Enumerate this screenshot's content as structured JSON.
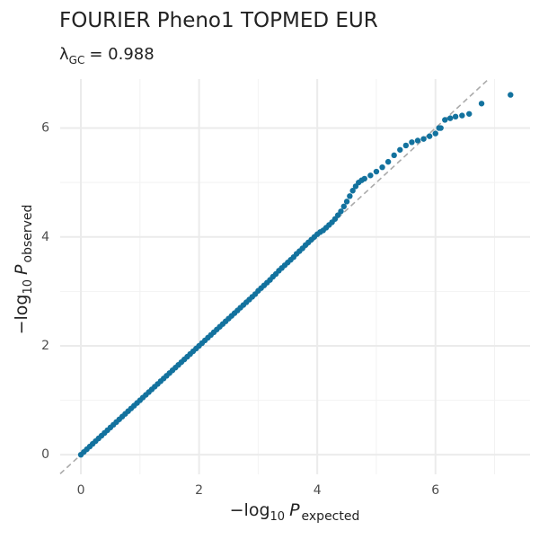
{
  "chart_data": {
    "type": "scatter",
    "title": "FOURIER Pheno1 TOPMED EUR",
    "subtitle": {
      "symbol": "λ",
      "subscript": "GC",
      "text": "= 0.988"
    },
    "x_label": {
      "prefix": "−log",
      "subscript": "10",
      "symbol": "P",
      "symbol_subscript": "expected"
    },
    "y_label": {
      "prefix": "−log",
      "subscript": "10",
      "symbol": "P",
      "symbol_subscript": "observed"
    },
    "xlim": [
      -0.35,
      7.6
    ],
    "ylim": [
      -0.36,
      6.9
    ],
    "xticks": [
      0,
      2,
      4,
      6
    ],
    "yticks": [
      0,
      2,
      4,
      6
    ],
    "minor_xticks": [
      1,
      3,
      5,
      7
    ],
    "minor_yticks": [
      1,
      3,
      5
    ],
    "grid": true,
    "reference_line": "y=x",
    "color": "#13729e",
    "x": [
      0,
      0.05,
      0.1,
      0.15,
      0.2,
      0.25,
      0.3,
      0.35,
      0.4,
      0.45,
      0.5,
      0.55,
      0.6,
      0.65,
      0.7,
      0.75,
      0.8,
      0.85,
      0.9,
      0.95,
      1,
      1.05,
      1.1,
      1.15,
      1.2,
      1.25,
      1.3,
      1.35,
      1.4,
      1.45,
      1.5,
      1.55,
      1.6,
      1.65,
      1.7,
      1.75,
      1.8,
      1.85,
      1.9,
      1.95,
      2,
      2.05,
      2.1,
      2.15,
      2.2,
      2.25,
      2.3,
      2.35,
      2.4,
      2.45,
      2.5,
      2.55,
      2.6,
      2.65,
      2.7,
      2.75,
      2.8,
      2.85,
      2.9,
      2.95,
      3,
      3.05,
      3.1,
      3.15,
      3.2,
      3.25,
      3.3,
      3.35,
      3.4,
      3.45,
      3.5,
      3.55,
      3.6,
      3.65,
      3.7,
      3.75,
      3.8,
      3.85,
      3.9,
      3.95,
      4,
      4.05,
      4.1,
      4.15,
      4.2,
      4.25,
      4.3,
      4.35,
      4.4,
      4.45,
      4.5,
      4.55,
      4.6,
      4.65,
      4.7,
      4.75,
      4.8,
      4.9,
      5,
      5.1,
      5.2,
      5.3,
      5.4,
      5.5,
      5.6,
      5.7,
      5.8,
      5.9,
      6,
      6.06,
      6.09,
      6.16,
      6.25,
      6.34,
      6.45,
      6.57,
      6.78,
      7.27
    ],
    "y": [
      0,
      0.05,
      0.1,
      0.15,
      0.2,
      0.25,
      0.3,
      0.35,
      0.4,
      0.45,
      0.5,
      0.55,
      0.6,
      0.65,
      0.7,
      0.75,
      0.8,
      0.85,
      0.9,
      0.95,
      1,
      1.05,
      1.1,
      1.15,
      1.2,
      1.25,
      1.3,
      1.35,
      1.4,
      1.45,
      1.5,
      1.55,
      1.6,
      1.65,
      1.7,
      1.75,
      1.8,
      1.85,
      1.9,
      1.95,
      2,
      2.05,
      2.1,
      2.15,
      2.2,
      2.25,
      2.3,
      2.35,
      2.4,
      2.45,
      2.5,
      2.55,
      2.6,
      2.65,
      2.7,
      2.75,
      2.8,
      2.85,
      2.9,
      2.95,
      3.01,
      3.06,
      3.11,
      3.16,
      3.21,
      3.27,
      3.32,
      3.38,
      3.43,
      3.48,
      3.53,
      3.58,
      3.63,
      3.69,
      3.74,
      3.79,
      3.85,
      3.9,
      3.95,
      4.0,
      4.05,
      4.09,
      4.12,
      4.17,
      4.22,
      4.27,
      4.33,
      4.4,
      4.47,
      4.56,
      4.65,
      4.75,
      4.85,
      4.93,
      5.0,
      5.04,
      5.07,
      5.13,
      5.2,
      5.28,
      5.38,
      5.5,
      5.6,
      5.68,
      5.74,
      5.77,
      5.8,
      5.85,
      5.9,
      6.0,
      6.0,
      6.15,
      6.18,
      6.21,
      6.23,
      6.26,
      6.45,
      6.61
    ]
  }
}
